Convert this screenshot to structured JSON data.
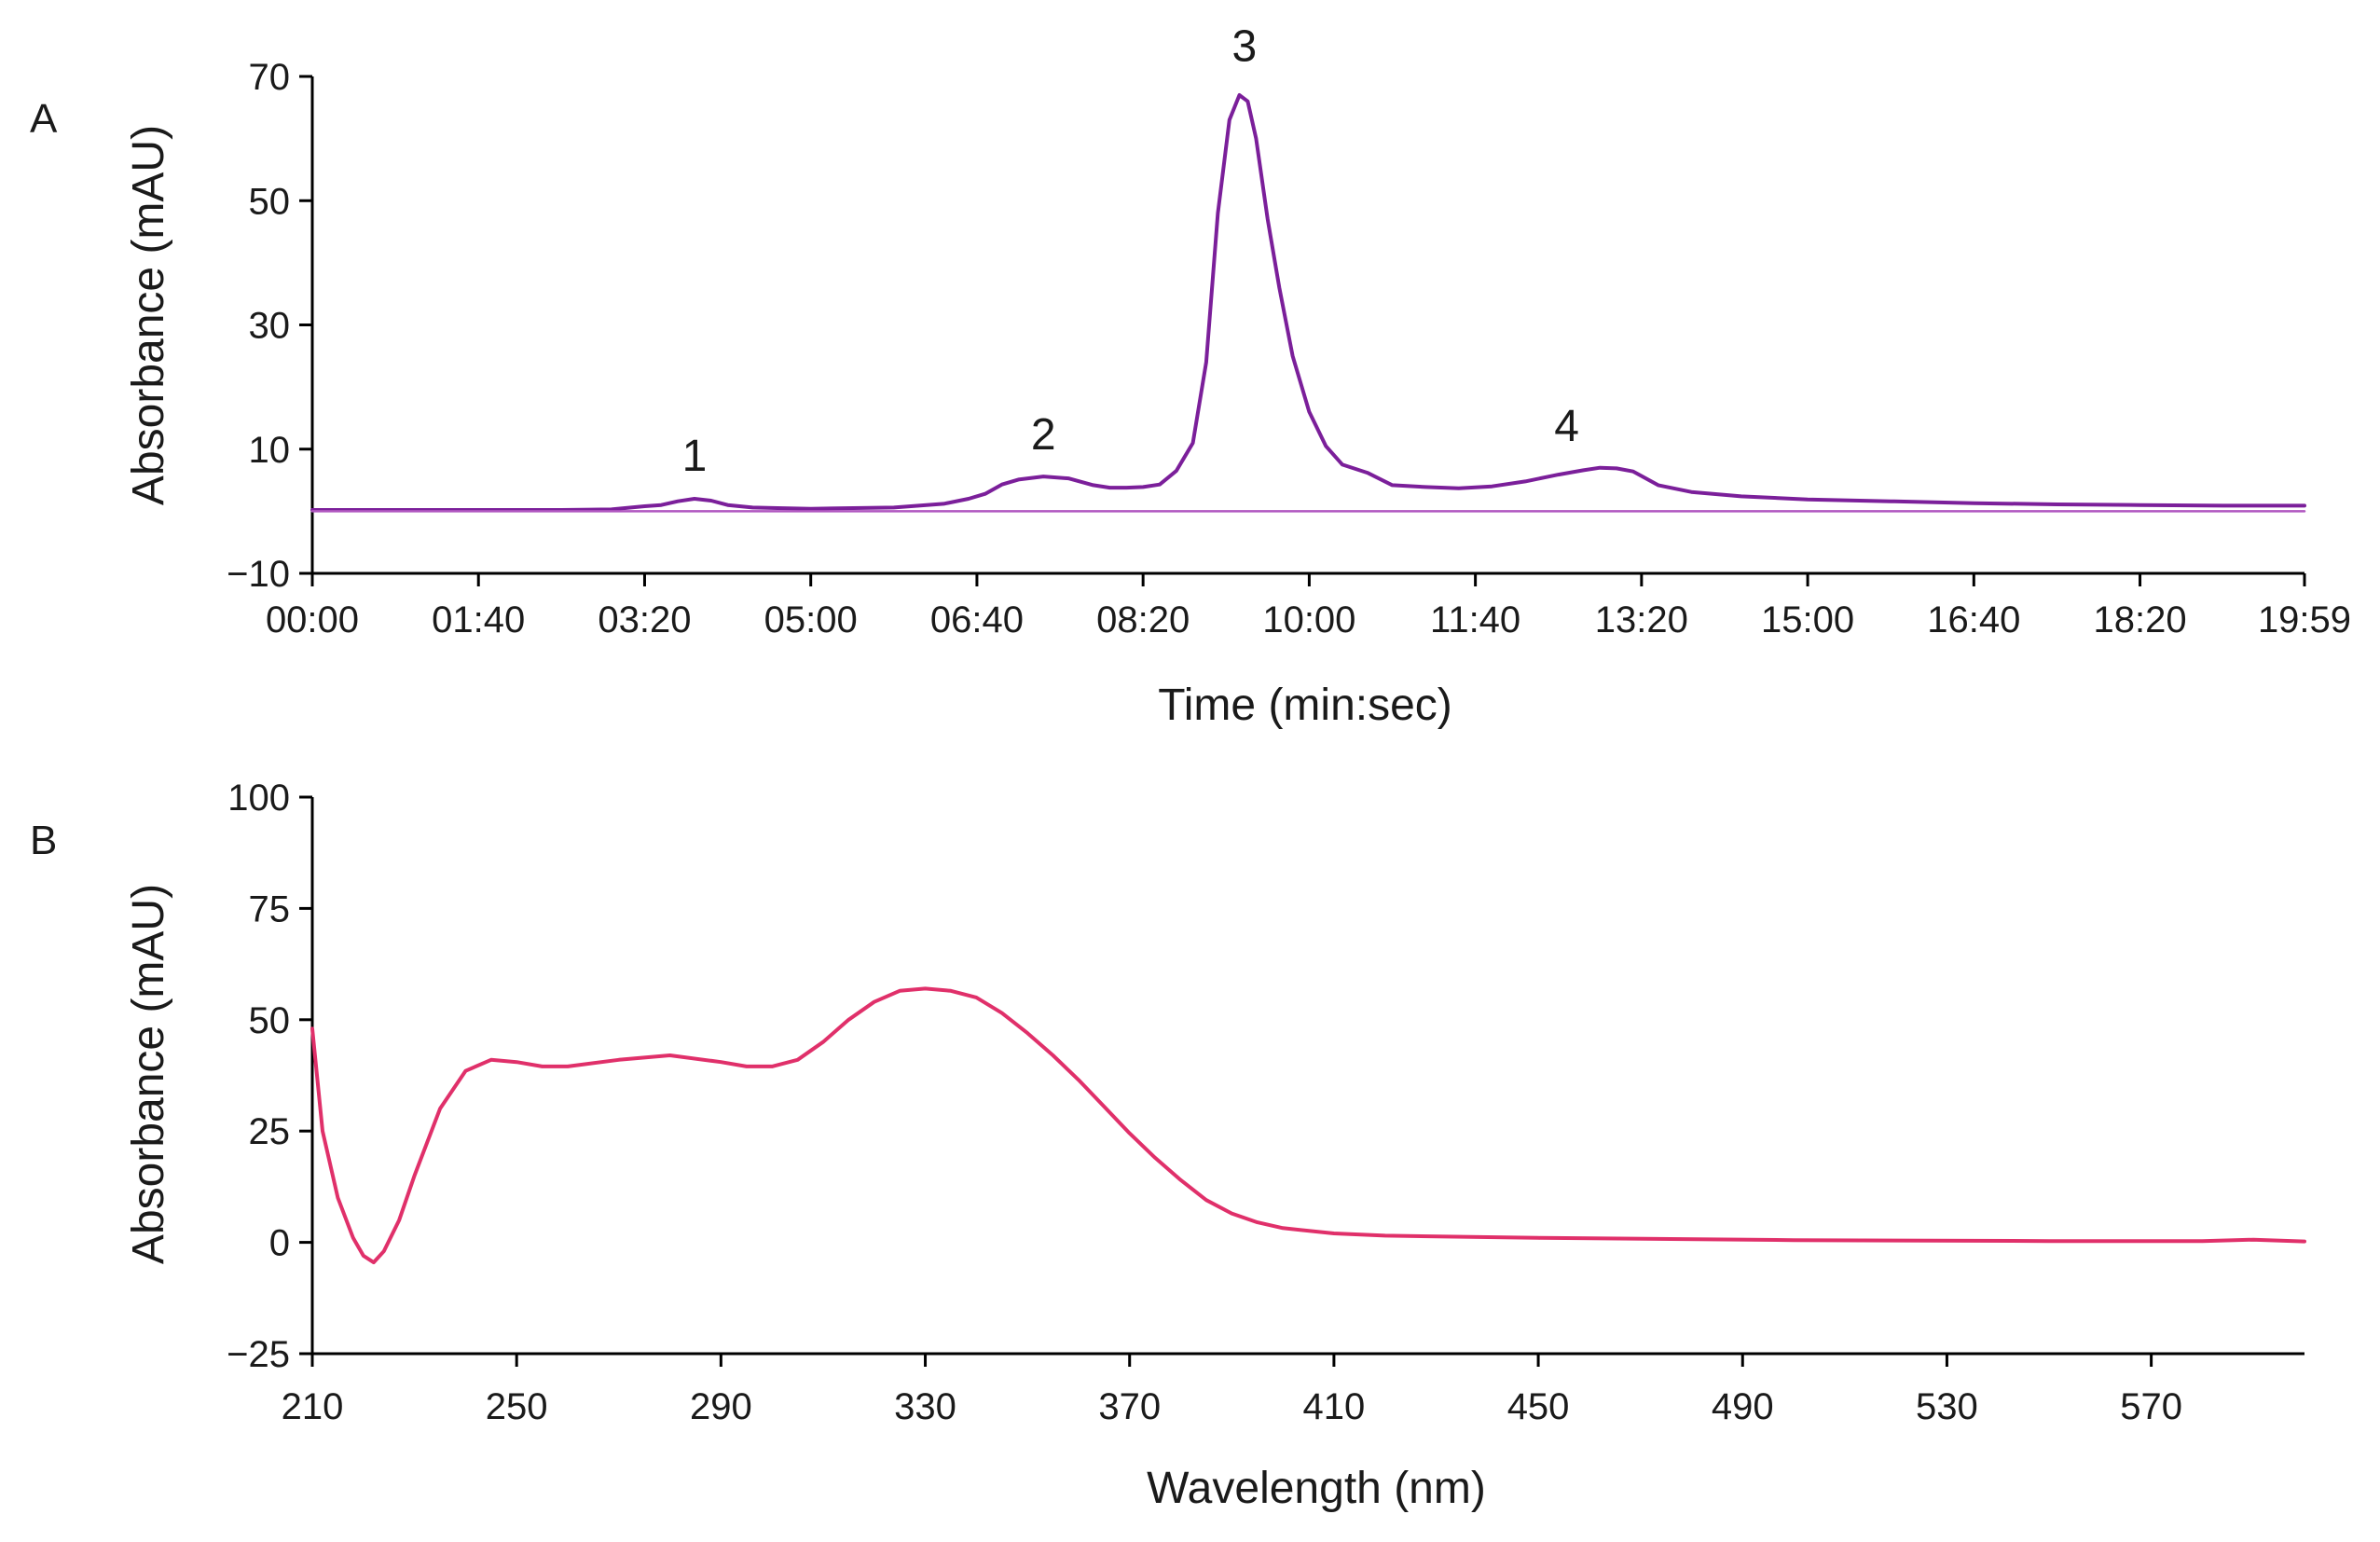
{
  "chart_data": [
    {
      "panel": "A",
      "type": "line",
      "title": "",
      "xlabel": "Time (min:sec)",
      "ylabel": "Absorbance (mAU)",
      "x_unit": "seconds",
      "xlim": [
        0,
        1199
      ],
      "ylim": [
        -10,
        70
      ],
      "x_ticks": [
        {
          "value": 0,
          "label": "00:00"
        },
        {
          "value": 100,
          "label": "01:40"
        },
        {
          "value": 200,
          "label": "03:20"
        },
        {
          "value": 300,
          "label": "05:00"
        },
        {
          "value": 400,
          "label": "06:40"
        },
        {
          "value": 500,
          "label": "08:20"
        },
        {
          "value": 600,
          "label": "10:00"
        },
        {
          "value": 700,
          "label": "11:40"
        },
        {
          "value": 800,
          "label": "13:20"
        },
        {
          "value": 900,
          "label": "15:00"
        },
        {
          "value": 1000,
          "label": "16:40"
        },
        {
          "value": 1100,
          "label": "18:20"
        },
        {
          "value": 1199,
          "label": "19:59"
        }
      ],
      "y_ticks": [
        {
          "value": -10,
          "label": "−10"
        },
        {
          "value": 10,
          "label": "10"
        },
        {
          "value": 30,
          "label": "30"
        },
        {
          "value": 50,
          "label": "50"
        },
        {
          "value": 70,
          "label": "70"
        }
      ],
      "series": [
        {
          "name": "chromatogram",
          "color": "#7b1f9a",
          "x": [
            0,
            150,
            180,
            200,
            210,
            220,
            230,
            240,
            250,
            265,
            280,
            300,
            350,
            380,
            395,
            405,
            415,
            425,
            440,
            455,
            470,
            480,
            490,
            500,
            510,
            520,
            530,
            538,
            545,
            552,
            558,
            563,
            568,
            575,
            582,
            590,
            600,
            610,
            620,
            635,
            650,
            670,
            690,
            710,
            730,
            750,
            765,
            775,
            785,
            795,
            810,
            830,
            860,
            900,
            950,
            1000,
            1050,
            1100,
            1150,
            1199
          ],
          "y": [
            0.2,
            0.2,
            0.3,
            0.8,
            1.0,
            1.6,
            2.0,
            1.7,
            1.0,
            0.6,
            0.5,
            0.4,
            0.6,
            1.2,
            2.0,
            2.8,
            4.3,
            5.1,
            5.6,
            5.3,
            4.2,
            3.8,
            3.8,
            3.9,
            4.3,
            6.5,
            11.0,
            24.0,
            48.0,
            63.0,
            67.0,
            66.0,
            60.0,
            47.0,
            36.0,
            25.0,
            16.0,
            10.5,
            7.5,
            6.2,
            4.2,
            3.9,
            3.7,
            4.0,
            4.8,
            5.9,
            6.6,
            7.0,
            6.9,
            6.4,
            4.2,
            3.1,
            2.4,
            1.9,
            1.6,
            1.3,
            1.1,
            1.0,
            0.9,
            0.9
          ]
        },
        {
          "name": "baseline",
          "color": "#b057c0",
          "x": [
            0,
            1199
          ],
          "y": [
            0,
            0
          ]
        }
      ],
      "annotations": [
        {
          "text": "1",
          "x": 230,
          "y": 6.5
        },
        {
          "text": "2",
          "x": 440,
          "y": 10.0
        },
        {
          "text": "3",
          "x": 561,
          "y": 72.5
        },
        {
          "text": "4",
          "x": 755,
          "y": 11.3
        }
      ]
    },
    {
      "panel": "B",
      "type": "line",
      "title": "",
      "xlabel": "Wavelength (nm)",
      "ylabel": "Absorbance (mAU)",
      "xlim": [
        210,
        600
      ],
      "ylim": [
        -25,
        100
      ],
      "x_ticks": [
        {
          "value": 210,
          "label": "210"
        },
        {
          "value": 250,
          "label": "250"
        },
        {
          "value": 290,
          "label": "290"
        },
        {
          "value": 330,
          "label": "330"
        },
        {
          "value": 370,
          "label": "370"
        },
        {
          "value": 410,
          "label": "410"
        },
        {
          "value": 450,
          "label": "450"
        },
        {
          "value": 490,
          "label": "490"
        },
        {
          "value": 530,
          "label": "530"
        },
        {
          "value": 570,
          "label": "570"
        }
      ],
      "y_ticks": [
        {
          "value": -25,
          "label": "−25"
        },
        {
          "value": 0,
          "label": "0"
        },
        {
          "value": 25,
          "label": "25"
        },
        {
          "value": 50,
          "label": "50"
        },
        {
          "value": 75,
          "label": "75"
        },
        {
          "value": 100,
          "label": "100"
        }
      ],
      "series": [
        {
          "name": "UV spectrum",
          "color": "#e0306a",
          "x": [
            210,
            212,
            215,
            218,
            220,
            222,
            224,
            227,
            230,
            235,
            240,
            245,
            250,
            255,
            260,
            270,
            280,
            290,
            295,
            300,
            305,
            310,
            315,
            320,
            325,
            330,
            335,
            340,
            345,
            350,
            355,
            360,
            365,
            370,
            375,
            380,
            385,
            390,
            395,
            400,
            410,
            420,
            450,
            500,
            550,
            580,
            590,
            600
          ],
          "y": [
            48,
            25,
            10,
            1,
            -3,
            -4.5,
            -2,
            5,
            15,
            30,
            38.5,
            41,
            40.5,
            39.5,
            39.5,
            41,
            42,
            40.5,
            39.5,
            39.5,
            41,
            45,
            50,
            54,
            56.5,
            57,
            56.5,
            55,
            51.5,
            47,
            42,
            36.5,
            30.5,
            24.5,
            19,
            14,
            9.5,
            6.5,
            4.5,
            3.2,
            2,
            1.5,
            1,
            0.5,
            0.3,
            0.3,
            0.6,
            0.2
          ]
        }
      ]
    }
  ],
  "panel_labels": {
    "A": "A",
    "B": "B"
  }
}
